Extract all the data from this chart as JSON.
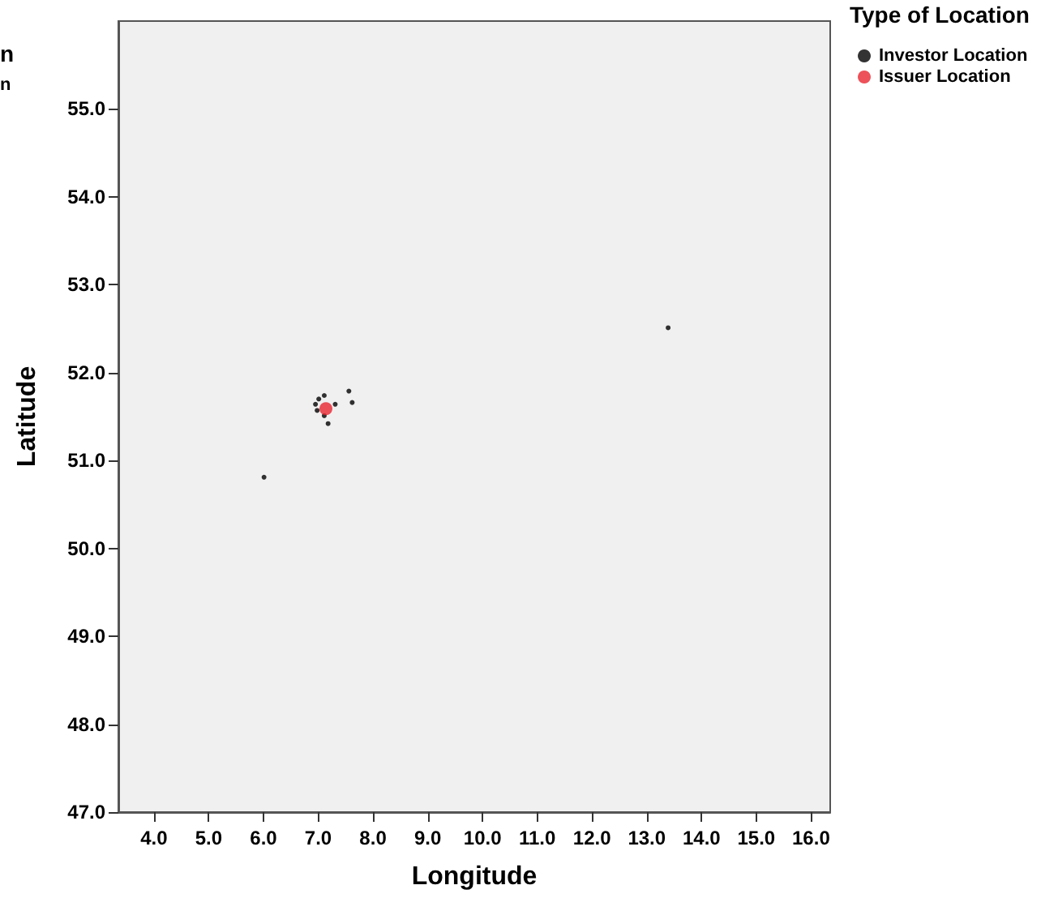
{
  "chart_data": {
    "type": "scatter",
    "xlabel": "Longitude",
    "ylabel": "Latitude",
    "legend_title": "Type of Location",
    "legend": "top right",
    "grid": false,
    "marker": "circle",
    "annotations": [
      "n",
      "n"
    ],
    "xlim": [
      3.35,
      16.35
    ],
    "xticks": [
      {
        "value": 4,
        "label": "4.0"
      },
      {
        "value": 5,
        "label": "5.0"
      },
      {
        "value": 6,
        "label": "6.0"
      },
      {
        "value": 7,
        "label": "7.0"
      },
      {
        "value": 8,
        "label": "8.0"
      },
      {
        "value": 9,
        "label": "9.0"
      },
      {
        "value": 10,
        "label": "10.0"
      },
      {
        "value": 11,
        "label": "11.0"
      },
      {
        "value": 12,
        "label": "12.0"
      },
      {
        "value": 13,
        "label": "13.0"
      },
      {
        "value": 14,
        "label": "14.0"
      },
      {
        "value": 15,
        "label": "15.0"
      },
      {
        "value": 16,
        "label": "16.0"
      }
    ],
    "ylim": [
      47,
      56
    ],
    "yticks": [
      {
        "value": 47,
        "label": "47.0"
      },
      {
        "value": 48,
        "label": "48.0"
      },
      {
        "value": 49,
        "label": "49.0"
      },
      {
        "value": 50,
        "label": "50.0"
      },
      {
        "value": 51,
        "label": "51.0"
      },
      {
        "value": 52,
        "label": "52.0"
      },
      {
        "value": 53,
        "label": "53.0"
      },
      {
        "value": 54,
        "label": "54.0"
      },
      {
        "value": 55,
        "label": "55.0"
      }
    ],
    "series": [
      {
        "name": "Investor Location",
        "color": "#000000",
        "x": [
          7.56,
          7.62,
          7.11,
          7.01,
          6.95,
          6.98,
          7.11,
          7.18,
          7.31,
          6.01,
          13.39
        ],
        "values": [
          51.79,
          51.66,
          51.74,
          51.7,
          51.64,
          51.57,
          51.51,
          51.42,
          51.64,
          50.81,
          52.51
        ]
      },
      {
        "name": "Issuer Location",
        "color": "#e8252f",
        "x": [
          7.14
        ],
        "values": [
          51.59
        ]
      }
    ]
  }
}
